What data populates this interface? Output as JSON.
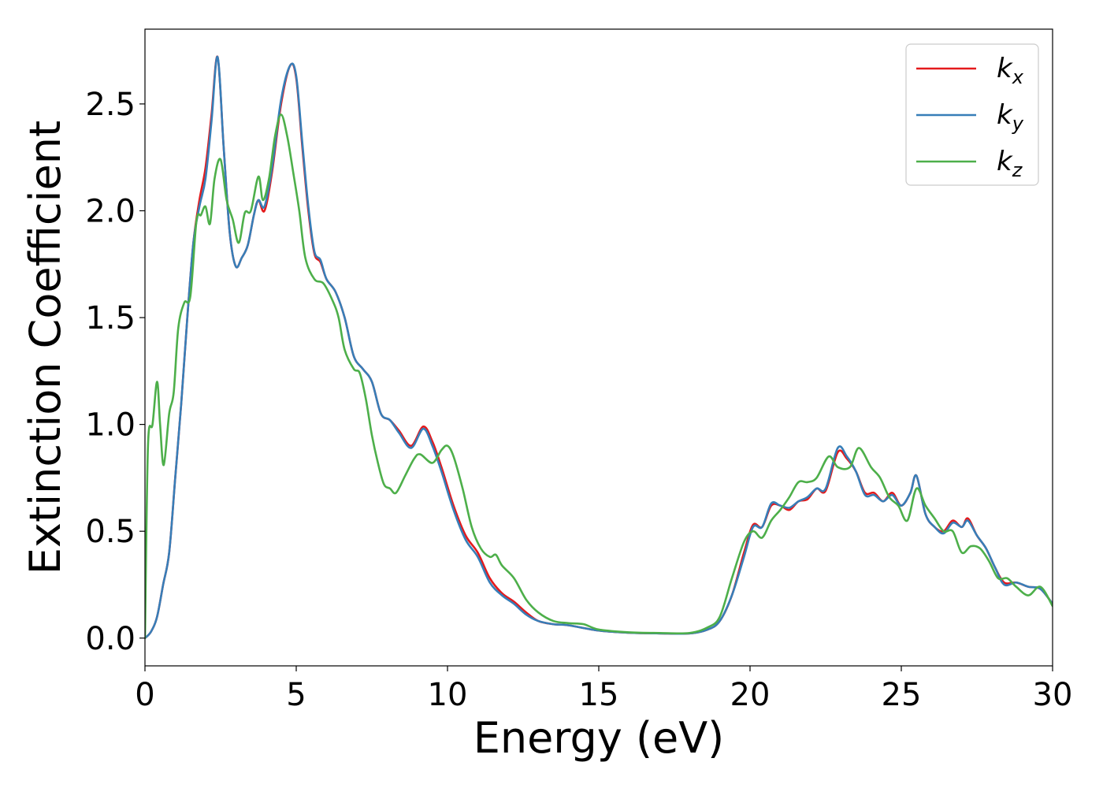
{
  "chart_data": {
    "type": "line",
    "title": "",
    "xlabel": "Energy (eV)",
    "ylabel": "Extinction Coefficient",
    "xlim": [
      0,
      30
    ],
    "ylim": [
      -0.13,
      2.85
    ],
    "xticks": [
      0,
      5,
      10,
      15,
      20,
      25,
      30
    ],
    "xtick_labels": [
      "0",
      "5",
      "10",
      "15",
      "20",
      "25",
      "30"
    ],
    "yticks": [
      0.0,
      0.5,
      1.0,
      1.5,
      2.0,
      2.5
    ],
    "ytick_labels": [
      "0.0",
      "0.5",
      "1.0",
      "1.5",
      "2.0",
      "2.5"
    ],
    "grid": false,
    "legend_position": "top-right",
    "series": [
      {
        "name": "k_x",
        "label_base": "k",
        "label_sub": "x",
        "color": "#e41a1c",
        "points": [
          [
            0,
            0.0
          ],
          [
            0.2,
            0.03
          ],
          [
            0.4,
            0.1
          ],
          [
            0.6,
            0.25
          ],
          [
            0.8,
            0.4
          ],
          [
            1.0,
            0.75
          ],
          [
            1.2,
            1.1
          ],
          [
            1.4,
            1.5
          ],
          [
            1.6,
            1.85
          ],
          [
            1.8,
            2.05
          ],
          [
            2.0,
            2.2
          ],
          [
            2.2,
            2.45
          ],
          [
            2.4,
            2.72
          ],
          [
            2.6,
            2.3
          ],
          [
            2.8,
            1.9
          ],
          [
            3.0,
            1.74
          ],
          [
            3.2,
            1.78
          ],
          [
            3.4,
            1.84
          ],
          [
            3.6,
            1.98
          ],
          [
            3.75,
            2.05
          ],
          [
            3.95,
            2.0
          ],
          [
            4.2,
            2.18
          ],
          [
            4.5,
            2.5
          ],
          [
            4.8,
            2.68
          ],
          [
            5.0,
            2.62
          ],
          [
            5.2,
            2.3
          ],
          [
            5.4,
            2.0
          ],
          [
            5.6,
            1.8
          ],
          [
            5.8,
            1.76
          ],
          [
            6.0,
            1.68
          ],
          [
            6.3,
            1.62
          ],
          [
            6.6,
            1.5
          ],
          [
            6.9,
            1.32
          ],
          [
            7.2,
            1.26
          ],
          [
            7.5,
            1.2
          ],
          [
            7.8,
            1.05
          ],
          [
            8.1,
            1.02
          ],
          [
            8.4,
            0.97
          ],
          [
            8.8,
            0.9
          ],
          [
            9.2,
            0.99
          ],
          [
            9.5,
            0.92
          ],
          [
            9.8,
            0.8
          ],
          [
            10.2,
            0.62
          ],
          [
            10.6,
            0.48
          ],
          [
            11.0,
            0.4
          ],
          [
            11.4,
            0.28
          ],
          [
            11.8,
            0.21
          ],
          [
            12.2,
            0.17
          ],
          [
            12.6,
            0.12
          ],
          [
            13.0,
            0.08
          ],
          [
            13.5,
            0.065
          ],
          [
            14.0,
            0.06
          ],
          [
            15.0,
            0.035
          ],
          [
            16.0,
            0.025
          ],
          [
            17.0,
            0.022
          ],
          [
            18.0,
            0.022
          ],
          [
            18.6,
            0.04
          ],
          [
            19.0,
            0.08
          ],
          [
            19.4,
            0.2
          ],
          [
            19.8,
            0.4
          ],
          [
            20.1,
            0.53
          ],
          [
            20.4,
            0.52
          ],
          [
            20.7,
            0.62
          ],
          [
            21.0,
            0.62
          ],
          [
            21.3,
            0.6
          ],
          [
            21.6,
            0.64
          ],
          [
            21.9,
            0.65
          ],
          [
            22.2,
            0.7
          ],
          [
            22.5,
            0.69
          ],
          [
            22.9,
            0.87
          ],
          [
            23.2,
            0.84
          ],
          [
            23.5,
            0.78
          ],
          [
            23.8,
            0.68
          ],
          [
            24.1,
            0.68
          ],
          [
            24.4,
            0.64
          ],
          [
            24.7,
            0.68
          ],
          [
            25.0,
            0.62
          ],
          [
            25.3,
            0.68
          ],
          [
            25.5,
            0.76
          ],
          [
            25.8,
            0.58
          ],
          [
            26.1,
            0.52
          ],
          [
            26.4,
            0.5
          ],
          [
            26.7,
            0.55
          ],
          [
            27.0,
            0.52
          ],
          [
            27.2,
            0.56
          ],
          [
            27.5,
            0.48
          ],
          [
            27.8,
            0.42
          ],
          [
            28.1,
            0.33
          ],
          [
            28.4,
            0.26
          ],
          [
            28.8,
            0.26
          ],
          [
            29.2,
            0.24
          ],
          [
            29.6,
            0.23
          ],
          [
            30.0,
            0.16
          ]
        ]
      },
      {
        "name": "k_y",
        "label_base": "k",
        "label_sub": "y",
        "color": "#377eb8",
        "points": [
          [
            0,
            0.0
          ],
          [
            0.2,
            0.03
          ],
          [
            0.4,
            0.1
          ],
          [
            0.6,
            0.25
          ],
          [
            0.8,
            0.4
          ],
          [
            1.0,
            0.75
          ],
          [
            1.2,
            1.1
          ],
          [
            1.4,
            1.5
          ],
          [
            1.6,
            1.85
          ],
          [
            1.8,
            2.02
          ],
          [
            2.0,
            2.15
          ],
          [
            2.2,
            2.42
          ],
          [
            2.4,
            2.72
          ],
          [
            2.6,
            2.3
          ],
          [
            2.8,
            1.9
          ],
          [
            3.0,
            1.74
          ],
          [
            3.2,
            1.78
          ],
          [
            3.4,
            1.84
          ],
          [
            3.6,
            1.98
          ],
          [
            3.75,
            2.05
          ],
          [
            3.95,
            2.02
          ],
          [
            4.2,
            2.2
          ],
          [
            4.5,
            2.52
          ],
          [
            4.8,
            2.68
          ],
          [
            5.0,
            2.63
          ],
          [
            5.2,
            2.32
          ],
          [
            5.4,
            2.02
          ],
          [
            5.6,
            1.81
          ],
          [
            5.8,
            1.77
          ],
          [
            6.0,
            1.68
          ],
          [
            6.3,
            1.62
          ],
          [
            6.6,
            1.5
          ],
          [
            6.9,
            1.32
          ],
          [
            7.2,
            1.26
          ],
          [
            7.5,
            1.2
          ],
          [
            7.8,
            1.05
          ],
          [
            8.1,
            1.02
          ],
          [
            8.4,
            0.96
          ],
          [
            8.8,
            0.89
          ],
          [
            9.2,
            0.98
          ],
          [
            9.5,
            0.9
          ],
          [
            9.8,
            0.78
          ],
          [
            10.2,
            0.6
          ],
          [
            10.6,
            0.46
          ],
          [
            11.0,
            0.38
          ],
          [
            11.4,
            0.26
          ],
          [
            11.8,
            0.2
          ],
          [
            12.2,
            0.16
          ],
          [
            12.6,
            0.11
          ],
          [
            13.0,
            0.08
          ],
          [
            13.5,
            0.065
          ],
          [
            14.0,
            0.06
          ],
          [
            15.0,
            0.035
          ],
          [
            16.0,
            0.025
          ],
          [
            17.0,
            0.022
          ],
          [
            18.0,
            0.022
          ],
          [
            18.6,
            0.04
          ],
          [
            19.0,
            0.08
          ],
          [
            19.4,
            0.2
          ],
          [
            19.8,
            0.38
          ],
          [
            20.1,
            0.52
          ],
          [
            20.4,
            0.52
          ],
          [
            20.7,
            0.63
          ],
          [
            21.0,
            0.62
          ],
          [
            21.3,
            0.61
          ],
          [
            21.6,
            0.64
          ],
          [
            21.9,
            0.66
          ],
          [
            22.2,
            0.7
          ],
          [
            22.5,
            0.7
          ],
          [
            22.9,
            0.89
          ],
          [
            23.2,
            0.85
          ],
          [
            23.5,
            0.78
          ],
          [
            23.8,
            0.67
          ],
          [
            24.1,
            0.67
          ],
          [
            24.4,
            0.64
          ],
          [
            24.7,
            0.67
          ],
          [
            25.0,
            0.62
          ],
          [
            25.3,
            0.68
          ],
          [
            25.5,
            0.76
          ],
          [
            25.8,
            0.58
          ],
          [
            26.1,
            0.52
          ],
          [
            26.4,
            0.49
          ],
          [
            26.7,
            0.54
          ],
          [
            27.0,
            0.52
          ],
          [
            27.2,
            0.55
          ],
          [
            27.5,
            0.48
          ],
          [
            27.8,
            0.42
          ],
          [
            28.1,
            0.33
          ],
          [
            28.4,
            0.25
          ],
          [
            28.8,
            0.26
          ],
          [
            29.2,
            0.24
          ],
          [
            29.6,
            0.23
          ],
          [
            30.0,
            0.16
          ]
        ]
      },
      {
        "name": "k_z",
        "label_base": "k",
        "label_sub": "z",
        "color": "#4daf4a",
        "points": [
          [
            0,
            0.0
          ],
          [
            0.1,
            0.9
          ],
          [
            0.25,
            1.0
          ],
          [
            0.4,
            1.2
          ],
          [
            0.5,
            1.0
          ],
          [
            0.62,
            0.81
          ],
          [
            0.8,
            1.05
          ],
          [
            0.95,
            1.15
          ],
          [
            1.1,
            1.45
          ],
          [
            1.3,
            1.57
          ],
          [
            1.5,
            1.6
          ],
          [
            1.7,
            1.95
          ],
          [
            1.85,
            1.98
          ],
          [
            2.0,
            2.02
          ],
          [
            2.15,
            1.94
          ],
          [
            2.3,
            2.15
          ],
          [
            2.5,
            2.24
          ],
          [
            2.7,
            2.05
          ],
          [
            2.9,
            1.96
          ],
          [
            3.1,
            1.85
          ],
          [
            3.3,
            1.99
          ],
          [
            3.5,
            2.0
          ],
          [
            3.75,
            2.16
          ],
          [
            3.9,
            2.05
          ],
          [
            4.1,
            2.15
          ],
          [
            4.3,
            2.35
          ],
          [
            4.5,
            2.45
          ],
          [
            4.7,
            2.35
          ],
          [
            4.9,
            2.18
          ],
          [
            5.1,
            2.0
          ],
          [
            5.3,
            1.78
          ],
          [
            5.6,
            1.68
          ],
          [
            5.9,
            1.66
          ],
          [
            6.2,
            1.58
          ],
          [
            6.4,
            1.5
          ],
          [
            6.6,
            1.35
          ],
          [
            6.9,
            1.26
          ],
          [
            7.1,
            1.24
          ],
          [
            7.3,
            1.12
          ],
          [
            7.5,
            0.95
          ],
          [
            7.7,
            0.82
          ],
          [
            7.9,
            0.72
          ],
          [
            8.1,
            0.7
          ],
          [
            8.3,
            0.68
          ],
          [
            8.6,
            0.76
          ],
          [
            8.9,
            0.84
          ],
          [
            9.1,
            0.86
          ],
          [
            9.5,
            0.82
          ],
          [
            9.8,
            0.88
          ],
          [
            10.0,
            0.9
          ],
          [
            10.2,
            0.85
          ],
          [
            10.5,
            0.7
          ],
          [
            10.8,
            0.52
          ],
          [
            11.1,
            0.42
          ],
          [
            11.4,
            0.38
          ],
          [
            11.6,
            0.39
          ],
          [
            11.8,
            0.34
          ],
          [
            12.2,
            0.28
          ],
          [
            12.6,
            0.18
          ],
          [
            13.0,
            0.12
          ],
          [
            13.5,
            0.08
          ],
          [
            14.0,
            0.07
          ],
          [
            14.5,
            0.065
          ],
          [
            15.0,
            0.04
          ],
          [
            16.0,
            0.027
          ],
          [
            17.0,
            0.024
          ],
          [
            18.0,
            0.024
          ],
          [
            18.6,
            0.05
          ],
          [
            19.0,
            0.1
          ],
          [
            19.4,
            0.28
          ],
          [
            19.8,
            0.45
          ],
          [
            20.1,
            0.5
          ],
          [
            20.4,
            0.47
          ],
          [
            20.7,
            0.55
          ],
          [
            21.0,
            0.6
          ],
          [
            21.3,
            0.66
          ],
          [
            21.6,
            0.73
          ],
          [
            21.9,
            0.73
          ],
          [
            22.2,
            0.75
          ],
          [
            22.6,
            0.85
          ],
          [
            22.9,
            0.8
          ],
          [
            23.3,
            0.8
          ],
          [
            23.6,
            0.89
          ],
          [
            24.0,
            0.8
          ],
          [
            24.3,
            0.75
          ],
          [
            24.6,
            0.66
          ],
          [
            24.9,
            0.62
          ],
          [
            25.2,
            0.55
          ],
          [
            25.5,
            0.7
          ],
          [
            25.8,
            0.62
          ],
          [
            26.1,
            0.56
          ],
          [
            26.4,
            0.5
          ],
          [
            26.7,
            0.5
          ],
          [
            27.0,
            0.4
          ],
          [
            27.3,
            0.43
          ],
          [
            27.6,
            0.42
          ],
          [
            27.9,
            0.36
          ],
          [
            28.2,
            0.28
          ],
          [
            28.5,
            0.28
          ],
          [
            28.8,
            0.24
          ],
          [
            29.2,
            0.2
          ],
          [
            29.6,
            0.24
          ],
          [
            30.0,
            0.15
          ]
        ]
      }
    ]
  }
}
